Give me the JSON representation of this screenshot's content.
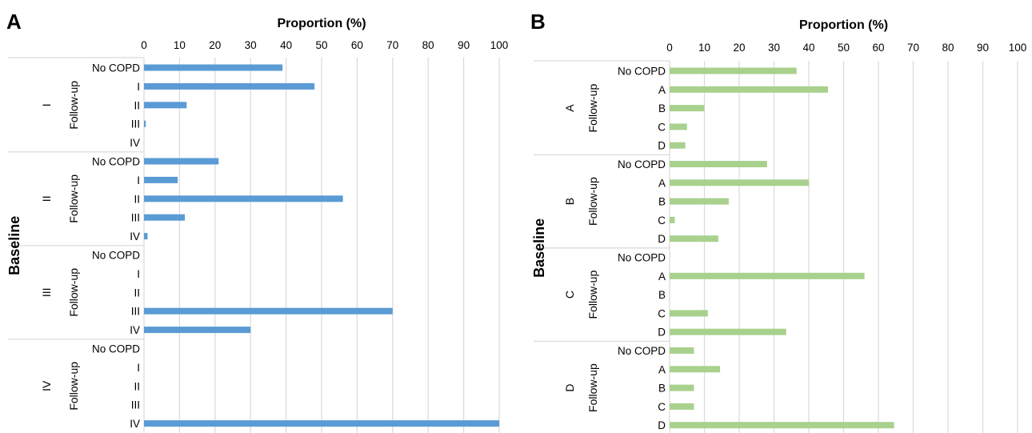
{
  "chart_data": [
    {
      "type": "bar",
      "orientation": "horizontal",
      "panel_label": "A",
      "xlabel": "Proportion (%)",
      "ylabel": "Baseline",
      "subgroup_label": "Follow-up",
      "xlim": [
        0,
        100
      ],
      "xticks": [
        0,
        10,
        20,
        30,
        40,
        50,
        60,
        70,
        80,
        90,
        100
      ],
      "grid": true,
      "color": "#5b9bd5",
      "groups": [
        {
          "label": "I",
          "categories": [
            "No COPD",
            "I",
            "II",
            "III",
            "IV"
          ],
          "values": [
            39,
            48,
            12,
            0.5,
            0
          ]
        },
        {
          "label": "II",
          "categories": [
            "No COPD",
            "I",
            "II",
            "III",
            "IV"
          ],
          "values": [
            21,
            9.5,
            56,
            11.5,
            1
          ]
        },
        {
          "label": "III",
          "categories": [
            "No COPD",
            "I",
            "II",
            "III",
            "IV"
          ],
          "values": [
            0,
            0,
            0,
            70,
            30
          ]
        },
        {
          "label": "IV",
          "categories": [
            "No COPD",
            "I",
            "II",
            "III",
            "IV"
          ],
          "values": [
            0,
            0,
            0,
            0,
            100
          ]
        }
      ]
    },
    {
      "type": "bar",
      "orientation": "horizontal",
      "panel_label": "B",
      "xlabel": "Proportion (%)",
      "ylabel": "Baseline",
      "subgroup_label": "Follow-up",
      "xlim": [
        0,
        100
      ],
      "xticks": [
        0,
        10,
        20,
        30,
        40,
        50,
        60,
        70,
        80,
        90,
        100
      ],
      "grid": true,
      "color": "#a9d18e",
      "groups": [
        {
          "label": "A",
          "categories": [
            "No COPD",
            "A",
            "B",
            "C",
            "D"
          ],
          "values": [
            36.5,
            45.5,
            10,
            5,
            4.5
          ]
        },
        {
          "label": "B",
          "categories": [
            "No COPD",
            "A",
            "B",
            "C",
            "D"
          ],
          "values": [
            28,
            40,
            17,
            1.5,
            14
          ]
        },
        {
          "label": "C",
          "categories": [
            "No COPD",
            "A",
            "B",
            "C",
            "D"
          ],
          "values": [
            0,
            56,
            0,
            11,
            33.5
          ]
        },
        {
          "label": "D",
          "categories": [
            "No COPD",
            "A",
            "B",
            "C",
            "D"
          ],
          "values": [
            7,
            14.5,
            7,
            7,
            64.5
          ]
        }
      ]
    }
  ]
}
